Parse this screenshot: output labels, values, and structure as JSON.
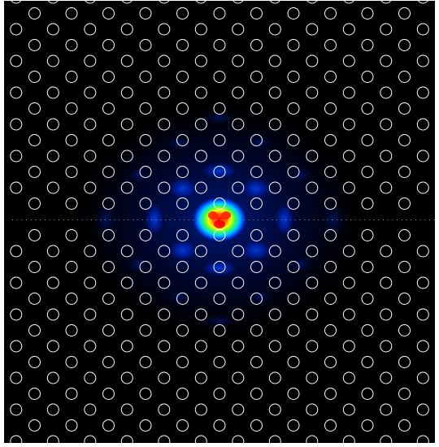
{
  "figure": {
    "description_kind": "photonic-crystal-field-map",
    "background_color": "#000000",
    "hole_outline_color": "#ffffff",
    "colormap": [
      "#00004a",
      "#0010c8",
      "#0050ff",
      "#00c8ff",
      "#00ff60",
      "#ffff00",
      "#ff6000",
      "#ff0000"
    ]
  }
}
